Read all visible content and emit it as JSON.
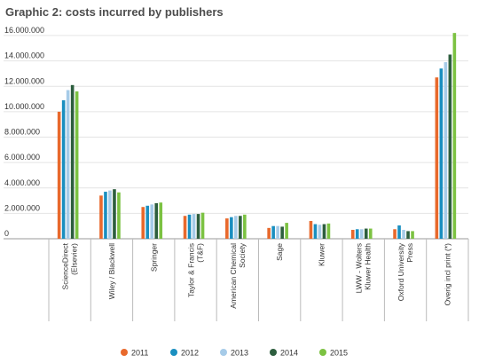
{
  "chart_data": {
    "type": "bar",
    "title": "Graphic 2: costs incurred by publishers",
    "xlabel": "",
    "ylabel": "",
    "ylim": [
      0,
      16000000
    ],
    "yticks": [
      "0",
      "2.000.000",
      "4.000.000",
      "6.000.000",
      "8.000.000",
      "10.000.000",
      "12.000.000",
      "14.000.000",
      "16.000.000"
    ],
    "ytick_values": [
      0,
      2000000,
      4000000,
      6000000,
      8000000,
      10000000,
      12000000,
      14000000,
      16000000
    ],
    "grid": true,
    "legend_position": "bottom",
    "categories": [
      [
        "ScienceDirect",
        "(Elsevier)"
      ],
      [
        "Wiley / Blackwell"
      ],
      [
        "Springer"
      ],
      [
        "Taylor & Francis",
        "(T&F)"
      ],
      [
        "American Chemical",
        "Society"
      ],
      [
        "Sage"
      ],
      [
        "Kluwer"
      ],
      [
        "LWW - Wolters",
        "Kluwer Health"
      ],
      [
        "Oxford University",
        "Press"
      ],
      [
        "Overig incl print (*)"
      ]
    ],
    "series": [
      {
        "name": "2011",
        "color": "#e8692c",
        "values": [
          10000000,
          3400000,
          2500000,
          1800000,
          1600000,
          850000,
          1400000,
          700000,
          750000,
          12700000
        ]
      },
      {
        "name": "2012",
        "color": "#1a8fc0",
        "values": [
          10900000,
          3700000,
          2600000,
          1900000,
          1700000,
          1000000,
          1150000,
          750000,
          1050000,
          13400000
        ]
      },
      {
        "name": "2013",
        "color": "#a6cbe8",
        "values": [
          11700000,
          3800000,
          2700000,
          1950000,
          1800000,
          1000000,
          1100000,
          750000,
          700000,
          13900000
        ]
      },
      {
        "name": "2014",
        "color": "#2d5e3e",
        "values": [
          12100000,
          3900000,
          2800000,
          1950000,
          1800000,
          950000,
          1150000,
          800000,
          600000,
          14500000
        ]
      },
      {
        "name": "2015",
        "color": "#7cc242",
        "values": [
          11600000,
          3650000,
          2850000,
          2050000,
          1900000,
          1250000,
          1200000,
          800000,
          600000,
          16200000
        ]
      }
    ]
  }
}
